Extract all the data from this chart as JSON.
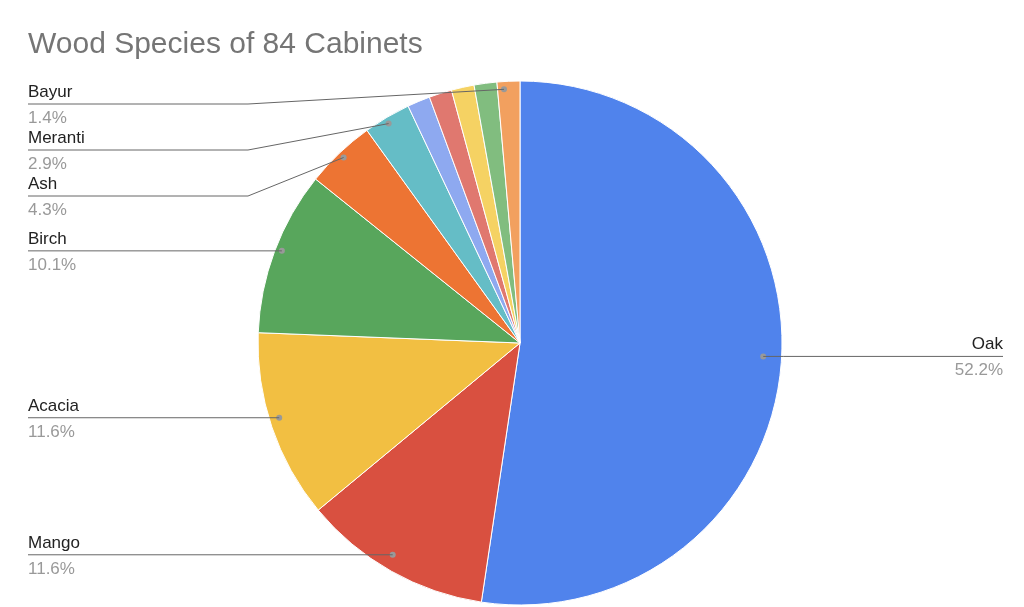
{
  "chart_data": {
    "type": "pie",
    "title": "Wood Species of 84 Cabinets",
    "categories": [
      "Oak",
      "Mango",
      "Acacia",
      "Birch",
      "Ash",
      "Meranti",
      null,
      null,
      null,
      null,
      "Bayur"
    ],
    "values": [
      52.2,
      11.6,
      11.6,
      10.1,
      4.3,
      2.9,
      1.4,
      1.4,
      1.4,
      1.4,
      1.4
    ],
    "value_labels": [
      "52.2%",
      "11.6%",
      "11.6%",
      "10.1%",
      "4.3%",
      "2.9%",
      null,
      null,
      null,
      null,
      "1.4%"
    ],
    "colors": [
      "#5083ec",
      "#d95040",
      "#f2bf42",
      "#58a65c",
      "#ed7433",
      "#65bdc6",
      "#8ea9f0",
      "#e0786f",
      "#f5d263",
      "#81bd7f",
      "#f2a05f"
    ],
    "legend": false
  }
}
